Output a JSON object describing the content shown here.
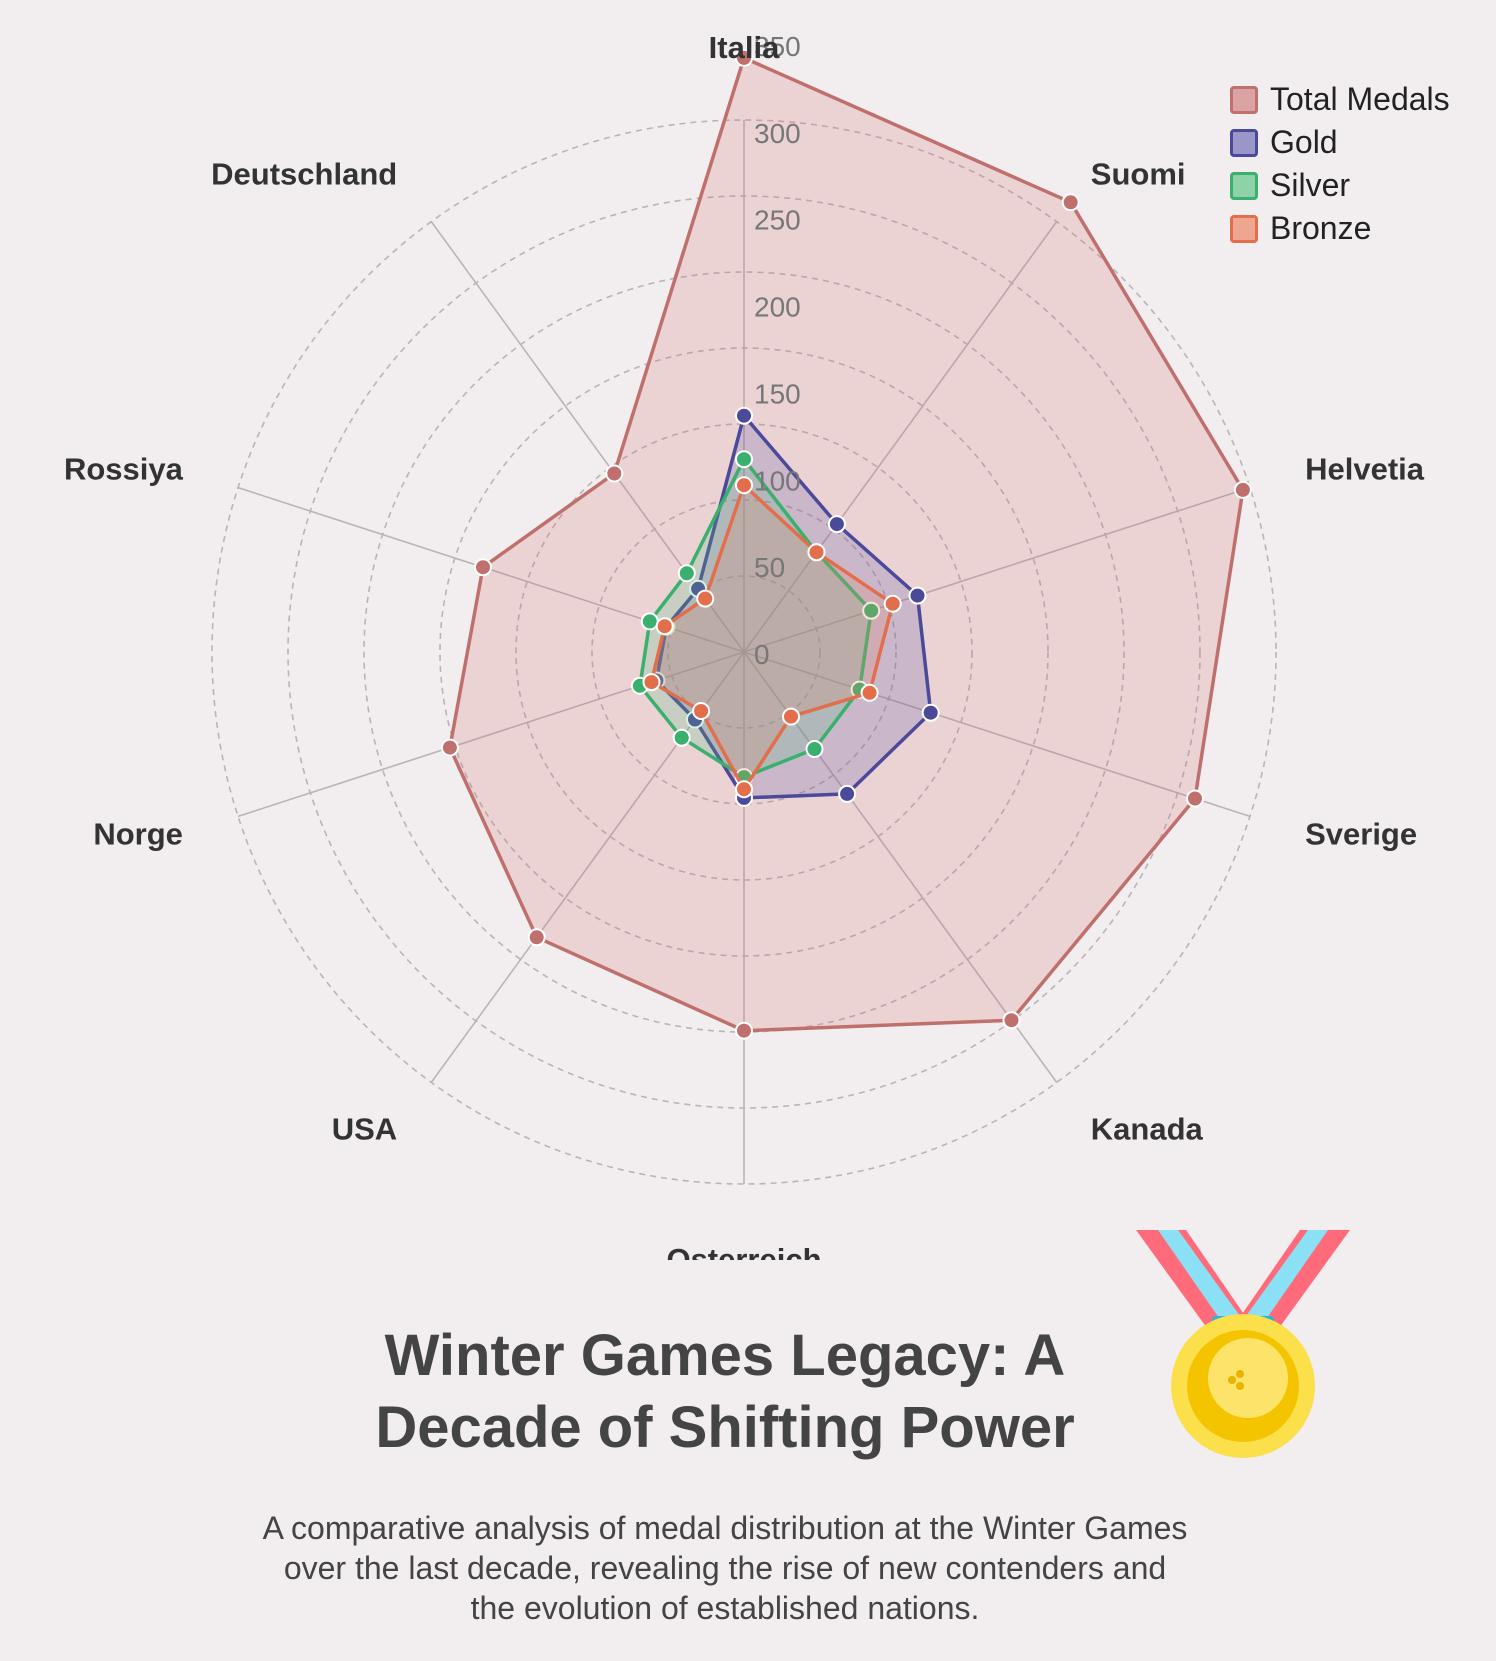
{
  "chart_data": {
    "type": "radar",
    "title": "Winter Games Legacy: A Decade of Shifting Power",
    "subtitle": "A comparative analysis of medal distribution at the Winter Games over the last decade, revealing the rise of new contenders and the evolution of established nations.",
    "axes": [
      "Italia",
      "Suomi",
      "Helvetia",
      "Sverige",
      "Kanada",
      "Osterreich",
      "USA",
      "Norge",
      "Rossiya",
      "Deutschland"
    ],
    "rticks": [
      0,
      50,
      100,
      150,
      200,
      250,
      300,
      350
    ],
    "rlim": [
      0,
      350
    ],
    "grid": true,
    "legend_position": "top-right",
    "series": [
      {
        "name": "Total Medals",
        "color": "#c0706c",
        "fill": "rgba(210,120,120,0.22)",
        "values": [
          342,
          320,
          302,
          273,
          262,
          218,
          203,
          178,
          158,
          127
        ]
      },
      {
        "name": "Gold",
        "color": "#4b4999",
        "fill": "rgba(90,85,170,0.22)",
        "values": [
          136,
          91,
          105,
          113,
          101,
          84,
          48,
          53,
          47,
          45
        ]
      },
      {
        "name": "Silver",
        "color": "#39b06e",
        "fill": "rgba(80,190,130,0.22)",
        "values": [
          111,
          71,
          77,
          70,
          69,
          72,
          61,
          63,
          57,
          56
        ]
      },
      {
        "name": "Bronze",
        "color": "#e26e4c",
        "fill": "rgba(230,130,100,0.22)",
        "values": [
          96,
          71,
          90,
          76,
          46,
          79,
          42,
          56,
          48,
          38
        ]
      }
    ]
  },
  "legend": {
    "items": [
      {
        "label": "Total Medals",
        "color": "#c0706c",
        "fill": "#dba3a3"
      },
      {
        "label": "Gold",
        "color": "#4b4999",
        "fill": "#9a96c8"
      },
      {
        "label": "Silver",
        "color": "#39b06e",
        "fill": "#8ed3a8"
      },
      {
        "label": "Bronze",
        "color": "#e26e4c",
        "fill": "#eea690"
      }
    ]
  },
  "header": {
    "title": "Winter Games Legacy: A Decade of Shifting Power",
    "subtitle": "A comparative analysis of medal distribution at the Winter Games over the last decade, revealing the rise of new contenders and the evolution of established nations."
  },
  "decoration": {
    "icon": "medal-icon"
  }
}
